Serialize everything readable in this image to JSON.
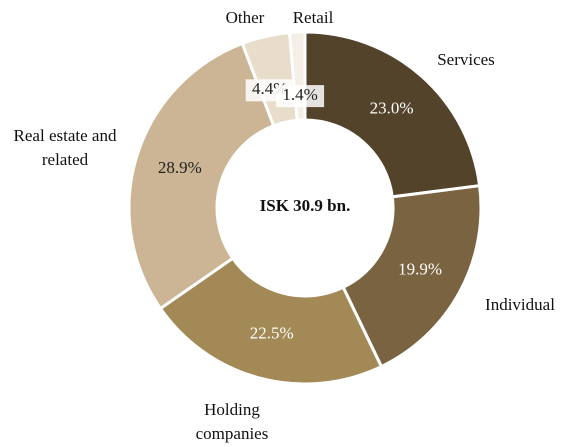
{
  "chart_data": {
    "type": "donut",
    "center_label": "ISK 30.9 bn.",
    "categories": [
      "Services",
      "Individual",
      "Holding companies",
      "Real estate and related",
      "Other",
      "Retail"
    ],
    "values": [
      23.0,
      19.9,
      22.5,
      28.9,
      4.4,
      1.4
    ],
    "value_labels": [
      "23.0%",
      "19.9%",
      "22.5%",
      "28.9%",
      "4.4%",
      "1.4%"
    ],
    "colors": [
      "#54432b",
      "#7a6340",
      "#a38955",
      "#cbb595",
      "#e8dccb",
      "#f3eee6"
    ]
  }
}
